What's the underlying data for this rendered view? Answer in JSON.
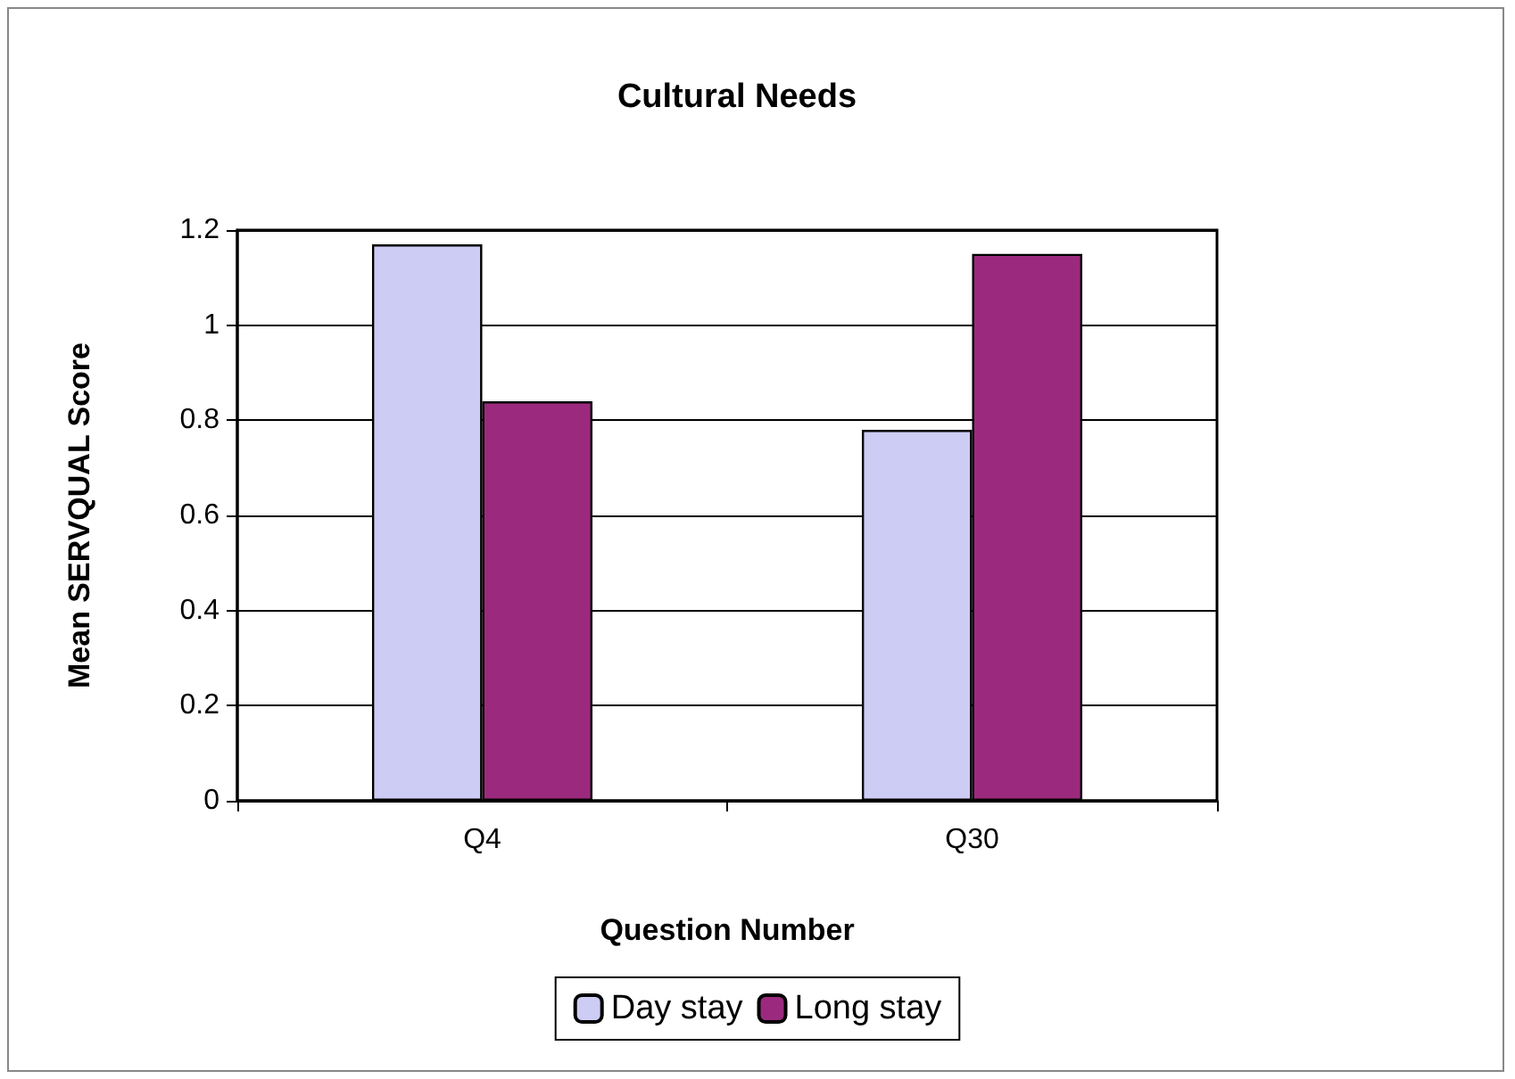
{
  "chart_data": {
    "type": "bar",
    "title": "Cultural Needs",
    "xlabel": "Question Number",
    "ylabel": "Mean SERVQUAL Score",
    "categories": [
      "Q4",
      "Q30"
    ],
    "series": [
      {
        "name": "Day stay",
        "color": "#ccccf5",
        "values": [
          1.17,
          0.78
        ]
      },
      {
        "name": "Long stay",
        "color": "#9b2a7e",
        "values": [
          0.84,
          1.15
        ]
      }
    ],
    "ylim": [
      0,
      1.2
    ],
    "yticks": [
      0,
      0.2,
      0.4,
      0.6,
      0.8,
      1,
      1.2
    ],
    "grid": "y",
    "legend": "bottom"
  }
}
